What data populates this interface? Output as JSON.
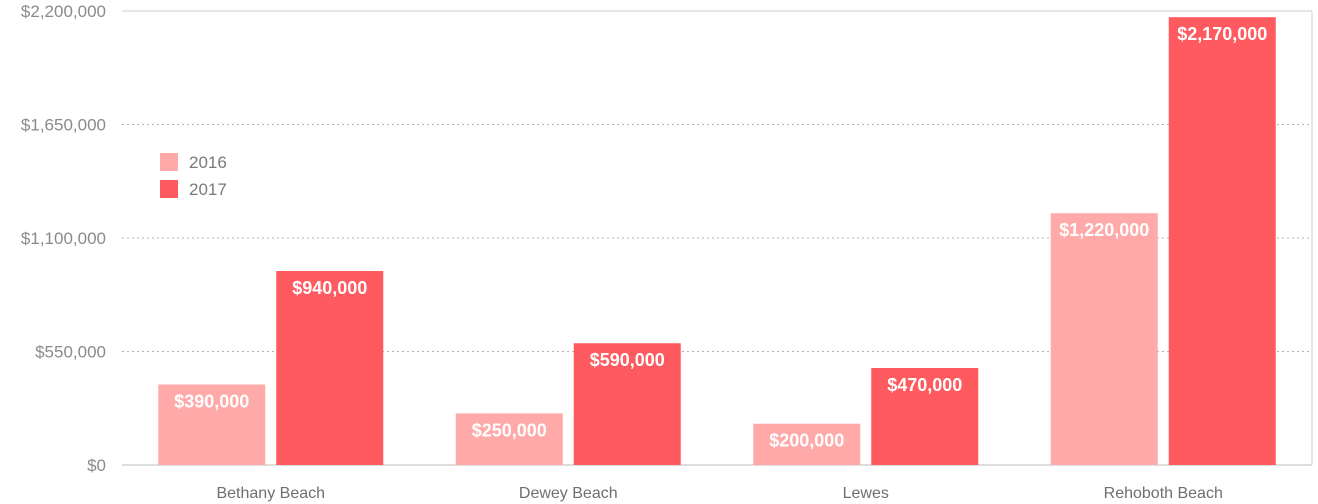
{
  "chart_data": {
    "type": "bar",
    "title": "",
    "xlabel": "",
    "ylabel": "",
    "categories": [
      "Bethany Beach",
      "Dewey Beach",
      "Lewes",
      "Rehoboth Beach"
    ],
    "series": [
      {
        "name": "2016",
        "color": "#ffaaa9",
        "values": [
          390000,
          250000,
          200000,
          1220000
        ],
        "labels": [
          "$390,000",
          "$250,000",
          "$200,000",
          "$1,220,000"
        ]
      },
      {
        "name": "2017",
        "color": "#ff5a5f",
        "values": [
          940000,
          590000,
          470000,
          2170000
        ],
        "labels": [
          "$940,000",
          "$590,000",
          "$470,000",
          "$2,170,000"
        ]
      }
    ],
    "ylim": [
      0,
      2200000
    ],
    "yticks": [
      0,
      550000,
      1100000,
      1650000,
      2200000
    ],
    "ytick_labels": [
      "$0",
      "$550,000",
      "$1,100,000",
      "$1,650,000",
      "$2,200,000"
    ],
    "grid": true,
    "grid_style": "dotted",
    "legend_position": "top-left"
  }
}
